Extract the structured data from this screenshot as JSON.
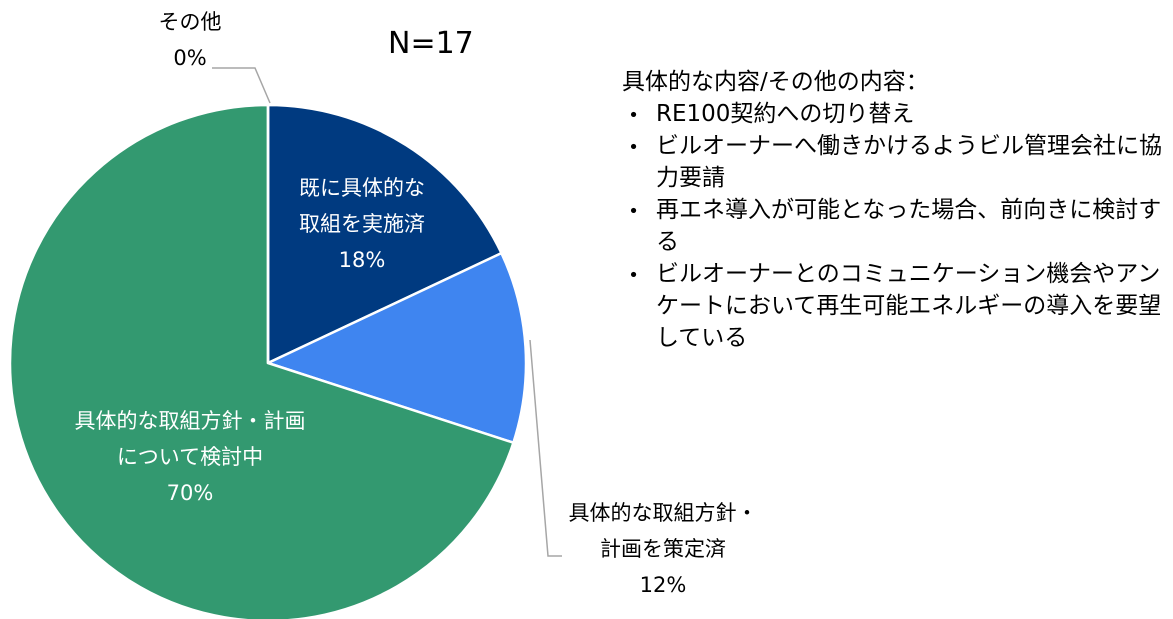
{
  "chart_data": {
    "type": "pie",
    "subtitle": "N=17",
    "categories": [
      "既に具体的な\n取組を実施済",
      "具体的な取組方針・\n計画を策定済",
      "具体的な取組方針・計画\nについて検討中",
      "その他"
    ],
    "values": [
      18,
      12,
      70,
      0
    ],
    "value_labels": [
      "18%",
      "12%",
      "70%",
      "0%"
    ],
    "colors": [
      "#003a80",
      "#3f85f0",
      "#339970",
      "#a6a6a6"
    ],
    "notes": {
      "title": "具体的な内容/その他の内容：",
      "items": [
        "RE100契約への切り替え",
        "ビルオーナーへ働きかけるようビル管理会社に協力要請",
        "再エネ導入が可能となった場合、前向きに検討する",
        "ビルオーナーとのコミュニケーション機会やアンケートにおいて再生可能エネルギーの導入を要望している"
      ]
    }
  }
}
